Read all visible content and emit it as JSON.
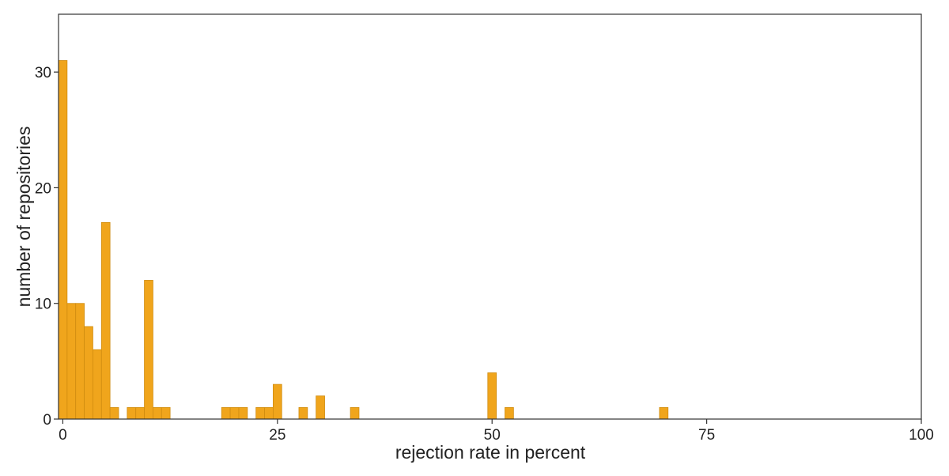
{
  "chart_data": {
    "type": "histogram",
    "x_label": "rejection rate in percent",
    "y_label": "number of repositories",
    "color": "#f0a51c",
    "bins": [
      -0.5,
      0.5,
      1.5,
      2.5,
      3.5,
      4.5,
      5.5,
      6.5,
      7.5,
      8.5,
      9.5,
      10.5,
      11.5,
      12.5,
      13.5,
      14.5,
      15.5,
      16.5,
      17.5,
      18.5,
      19.5,
      20.5,
      21.5,
      22.5,
      23.5,
      24.5,
      25.5,
      26.5,
      27.5,
      28.5,
      29.5,
      30.5,
      31.5,
      32.5,
      33.5,
      34.5,
      35.5,
      36.5,
      37.5,
      38.5,
      39.5,
      40.5,
      41.5,
      42.5,
      43.5,
      44.5,
      45.5,
      46.5,
      47.5,
      48.5,
      49.5,
      50.5,
      51.5,
      52.5,
      53.5,
      54.5,
      55.5,
      56.5,
      57.5,
      58.5,
      59.5,
      60.5,
      61.5,
      62.5,
      63.5,
      64.5,
      65.5,
      66.5,
      67.5,
      68.5,
      69.5,
      70.5
    ],
    "values": [
      31,
      10,
      10,
      8,
      6,
      17,
      1,
      0,
      1,
      1,
      12,
      1,
      1,
      0,
      0,
      0,
      0,
      0,
      0,
      1,
      1,
      1,
      0,
      1,
      1,
      3,
      0,
      0,
      1,
      0,
      2,
      0,
      0,
      0,
      1,
      0,
      0,
      0,
      0,
      0,
      0,
      0,
      0,
      0,
      0,
      0,
      0,
      0,
      0,
      0,
      4,
      0,
      1,
      0,
      0,
      0,
      0,
      0,
      0,
      0,
      0,
      0,
      0,
      0,
      0,
      0,
      0,
      0,
      0,
      0,
      1
    ],
    "xlim": [
      -0.5,
      100
    ],
    "xticks": [
      0,
      25,
      50,
      75,
      100
    ],
    "ylim": [
      0,
      35
    ],
    "yticks": [
      0,
      10,
      20,
      30
    ]
  }
}
